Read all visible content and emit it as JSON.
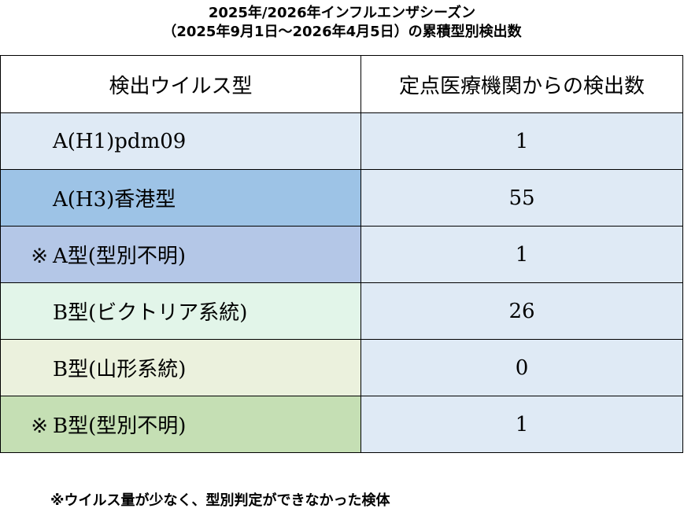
{
  "title_line1": "2025年/2026年インフルエンザシーズン",
  "title_line2": "（2025年9月1日～2026年4月5日）の累積型別検出数",
  "table": {
    "headers": [
      "検出ウイルス型",
      "定点医療機関からの検出数"
    ],
    "rows": [
      {
        "mark": "",
        "label": "A(H1)pdm09",
        "value": "1",
        "color": "#dfeaf5"
      },
      {
        "mark": "",
        "label": "A(H3)香港型",
        "value": "55",
        "color": "#9dc3e6"
      },
      {
        "mark": "※",
        "label": "A型(型別不明)",
        "value": "1",
        "color": "#b4c7e7"
      },
      {
        "mark": "",
        "label": "B型(ビクトリア系統)",
        "value": "26",
        "color": "#e2f5e9"
      },
      {
        "mark": "",
        "label": "B型(山形系統)",
        "value": "0",
        "color": "#ebf1dd"
      },
      {
        "mark": "※",
        "label": "B型(型別不明)",
        "value": "1",
        "color": "#c5dfb4"
      }
    ]
  },
  "footnote": "※ウイルス量が少なく、型別判定ができなかった検体"
}
